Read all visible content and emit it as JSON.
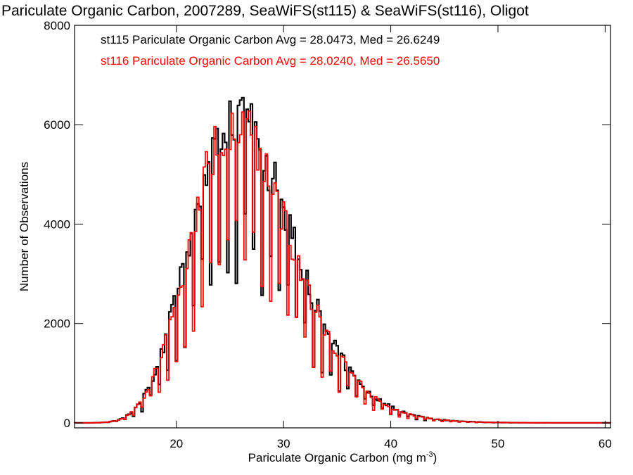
{
  "chart_data": {
    "type": "histogram-step",
    "title": "Pariculate Organic Carbon, 2007289, SeaWiFS(st115) & SeaWiFS(st116), Oligot",
    "xlabel_main": "Pariculate Organic Carbon (mg m",
    "xlabel_sup": "-3",
    "xlabel_end": ")",
    "ylabel": "Number of Observations",
    "xlim": [
      10.5,
      60.5
    ],
    "ylim": [
      -100,
      8000
    ],
    "xticks": [
      20,
      30,
      40,
      50,
      60
    ],
    "yticks": [
      0,
      2000,
      4000,
      6000,
      8000
    ],
    "xtick_labels": [
      "20",
      "30",
      "40",
      "50",
      "60"
    ],
    "ytick_labels": [
      "0",
      "2000",
      "4000",
      "6000",
      "8000"
    ],
    "grid": false,
    "legend_placement": "top-left",
    "bin_width": 0.2,
    "series": [
      {
        "name": "st115",
        "legend": "st115 Pariculate Organic Carbon Avg = 28.0473, Med = 26.6249",
        "color": "#000000",
        "mean": 28.0473,
        "median": 26.6249,
        "peak_x": 24.8,
        "peak_y": 6450
      },
      {
        "name": "st116",
        "legend": "st116 Pariculate Organic Carbon Avg = 28.0240, Med = 26.5650",
        "color": "#ff0000",
        "mean": 28.024,
        "median": 26.565,
        "peak_x": 24.8,
        "peak_y": 6200
      }
    ]
  }
}
